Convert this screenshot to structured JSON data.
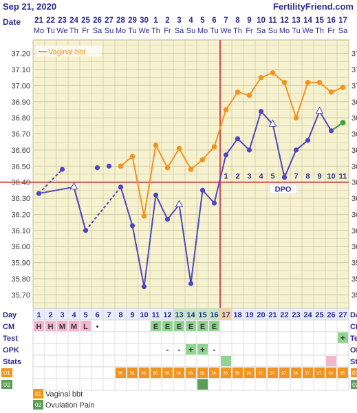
{
  "header": {
    "date": "Sep 21, 2020",
    "site": "FertilityFriend.com",
    "date_row_label": "Date"
  },
  "dates": [
    {
      "d": "21",
      "w": "Mo"
    },
    {
      "d": "22",
      "w": "Tu"
    },
    {
      "d": "23",
      "w": "We"
    },
    {
      "d": "24",
      "w": "Th"
    },
    {
      "d": "25",
      "w": "Fr"
    },
    {
      "d": "26",
      "w": "Sa"
    },
    {
      "d": "27",
      "w": "Su"
    },
    {
      "d": "28",
      "w": "Mo"
    },
    {
      "d": "29",
      "w": "Tu"
    },
    {
      "d": "30",
      "w": "We"
    },
    {
      "d": "1",
      "w": "Th"
    },
    {
      "d": "2",
      "w": "Fr"
    },
    {
      "d": "3",
      "w": "Sa"
    },
    {
      "d": "4",
      "w": "Su"
    },
    {
      "d": "5",
      "w": "Mo"
    },
    {
      "d": "6",
      "w": "Tu"
    },
    {
      "d": "7",
      "w": "We"
    },
    {
      "d": "8",
      "w": "Th"
    },
    {
      "d": "9",
      "w": "Fr"
    },
    {
      "d": "10",
      "w": "Sa"
    },
    {
      "d": "11",
      "w": "Su"
    },
    {
      "d": "12",
      "w": "Mo"
    },
    {
      "d": "13",
      "w": "Tu"
    },
    {
      "d": "14",
      "w": "We"
    },
    {
      "d": "15",
      "w": "Th"
    },
    {
      "d": "16",
      "w": "Fr"
    },
    {
      "d": "17",
      "w": "Sa"
    }
  ],
  "chart_data": {
    "type": "line",
    "ylim": [
      35.65,
      37.25
    ],
    "yticks": [
      "37.20",
      "37.10",
      "37.00",
      "36.90",
      "36.80",
      "36.70",
      "36.60",
      "36.50",
      "36.40",
      "36.30",
      "36.20",
      "36.10",
      "36.00",
      "35.90",
      "35.80",
      "35.70"
    ],
    "coverline": 36.4,
    "ovulation_day": 16,
    "dpo_label": "DPO",
    "dpo_numbers": [
      "1",
      "2",
      "3",
      "4",
      "5",
      "6",
      "7",
      "8",
      "9",
      "10",
      "11"
    ],
    "legend_label": "Vaginal bbt",
    "colors": {
      "vaginal": "#f29420",
      "oral": "#5046c2",
      "grid_bg": "#f6f1cf",
      "grid_line": "#c9c4a0",
      "coverline": "#d05050",
      "today": "#3aa63a"
    },
    "series": [
      {
        "name": "Vaginal bbt",
        "color": "#f29420",
        "points": [
          [
            8,
            36.5
          ],
          [
            9,
            36.56
          ],
          [
            10,
            36.19
          ],
          [
            11,
            36.63
          ],
          [
            12,
            36.49
          ],
          [
            13,
            36.61
          ],
          [
            14,
            36.48
          ],
          [
            15,
            36.54
          ],
          [
            16,
            36.62
          ],
          [
            17,
            36.85
          ],
          [
            18,
            36.96
          ],
          [
            19,
            36.94
          ],
          [
            20,
            37.05
          ],
          [
            21,
            37.08
          ],
          [
            22,
            37.02
          ],
          [
            23,
            36.8
          ],
          [
            24,
            37.02
          ],
          [
            25,
            37.02
          ],
          [
            26,
            36.96
          ],
          [
            27,
            36.99
          ]
        ]
      },
      {
        "name": "",
        "color": "#5046c2",
        "points": [
          [
            1,
            36.33
          ],
          [
            3,
            36.48
          ],
          [
            4,
            36.37
          ],
          [
            5,
            36.1
          ],
          [
            6,
            36.49
          ],
          [
            7,
            36.5
          ],
          [
            8,
            36.37
          ],
          [
            9,
            36.13
          ],
          [
            10,
            35.75
          ],
          [
            11,
            36.32
          ],
          [
            12,
            36.17
          ],
          [
            13,
            36.26
          ],
          [
            14,
            35.77
          ],
          [
            15,
            36.35
          ],
          [
            16,
            36.27
          ],
          [
            17,
            36.57
          ],
          [
            18,
            36.67
          ],
          [
            19,
            36.6
          ],
          [
            20,
            36.84
          ],
          [
            21,
            36.76
          ],
          [
            22,
            36.43
          ],
          [
            23,
            36.6
          ],
          [
            24,
            36.66
          ],
          [
            25,
            36.84
          ],
          [
            26,
            36.72
          ],
          [
            27,
            36.77
          ]
        ]
      }
    ]
  },
  "rows": {
    "day_label": "Day",
    "cm_label": "CM",
    "test_label": "Test",
    "opk_label": "OPK",
    "stats_label": "Stats",
    "row01_label": "01",
    "row02_label": "02",
    "cm": [
      {
        "day": 1,
        "v": "H",
        "c": "#f3b6cf"
      },
      {
        "day": 2,
        "v": "H",
        "c": "#f3b6cf"
      },
      {
        "day": 3,
        "v": "M",
        "c": "#f3b6cf"
      },
      {
        "day": 4,
        "v": "M",
        "c": "#f3b6cf"
      },
      {
        "day": 5,
        "v": "L",
        "c": "#f3b6cf"
      },
      {
        "day": 6,
        "v": "•",
        "c": ""
      },
      {
        "day": 11,
        "v": "E",
        "c": "#8fd48f"
      },
      {
        "day": 12,
        "v": "E",
        "c": "#8fd48f"
      },
      {
        "day": 13,
        "v": "E",
        "c": "#8fd48f"
      },
      {
        "day": 14,
        "v": "E",
        "c": "#8fd48f"
      },
      {
        "day": 15,
        "v": "E",
        "c": "#8fd48f"
      },
      {
        "day": 16,
        "v": "E",
        "c": "#8fd48f"
      }
    ],
    "test": [
      {
        "day": 27,
        "v": "+",
        "c": "#8fd48f"
      }
    ],
    "opk": [
      {
        "day": 12,
        "v": "-",
        "c": ""
      },
      {
        "day": 13,
        "v": "-",
        "c": ""
      },
      {
        "day": 14,
        "v": "+",
        "c": "#8fd48f"
      },
      {
        "day": 15,
        "v": "+",
        "c": "#8fd48f"
      },
      {
        "day": 16,
        "v": "-",
        "c": ""
      }
    ],
    "stats": [
      {
        "day": 17,
        "c": "#8fd48f"
      },
      {
        "day": 26,
        "c": "#f3b6cf"
      }
    ],
    "row01": [
      {
        "day": 8,
        "v": "36."
      },
      {
        "day": 9,
        "v": "36."
      },
      {
        "day": 10,
        "v": "36."
      },
      {
        "day": 11,
        "v": "36."
      },
      {
        "day": 12,
        "v": "36."
      },
      {
        "day": 13,
        "v": "36."
      },
      {
        "day": 14,
        "v": "36."
      },
      {
        "day": 15,
        "v": "36."
      },
      {
        "day": 16,
        "v": "36."
      },
      {
        "day": 17,
        "v": "36."
      },
      {
        "day": 18,
        "v": "36."
      },
      {
        "day": 19,
        "v": "36."
      },
      {
        "day": 20,
        "v": "37."
      },
      {
        "day": 21,
        "v": "37."
      },
      {
        "day": 22,
        "v": "37."
      },
      {
        "day": 23,
        "v": "36."
      },
      {
        "day": 24,
        "v": "37."
      },
      {
        "day": 25,
        "v": "37."
      },
      {
        "day": 26,
        "v": "36."
      },
      {
        "day": 27,
        "v": "36."
      }
    ],
    "row02_marks": [
      {
        "day": 15
      }
    ]
  },
  "legend": [
    {
      "code": "01",
      "label": "Vaginal bbt",
      "color": "#f29420"
    },
    {
      "code": "02",
      "label": "Ovulation Pain",
      "color": "#5a9e57"
    }
  ]
}
